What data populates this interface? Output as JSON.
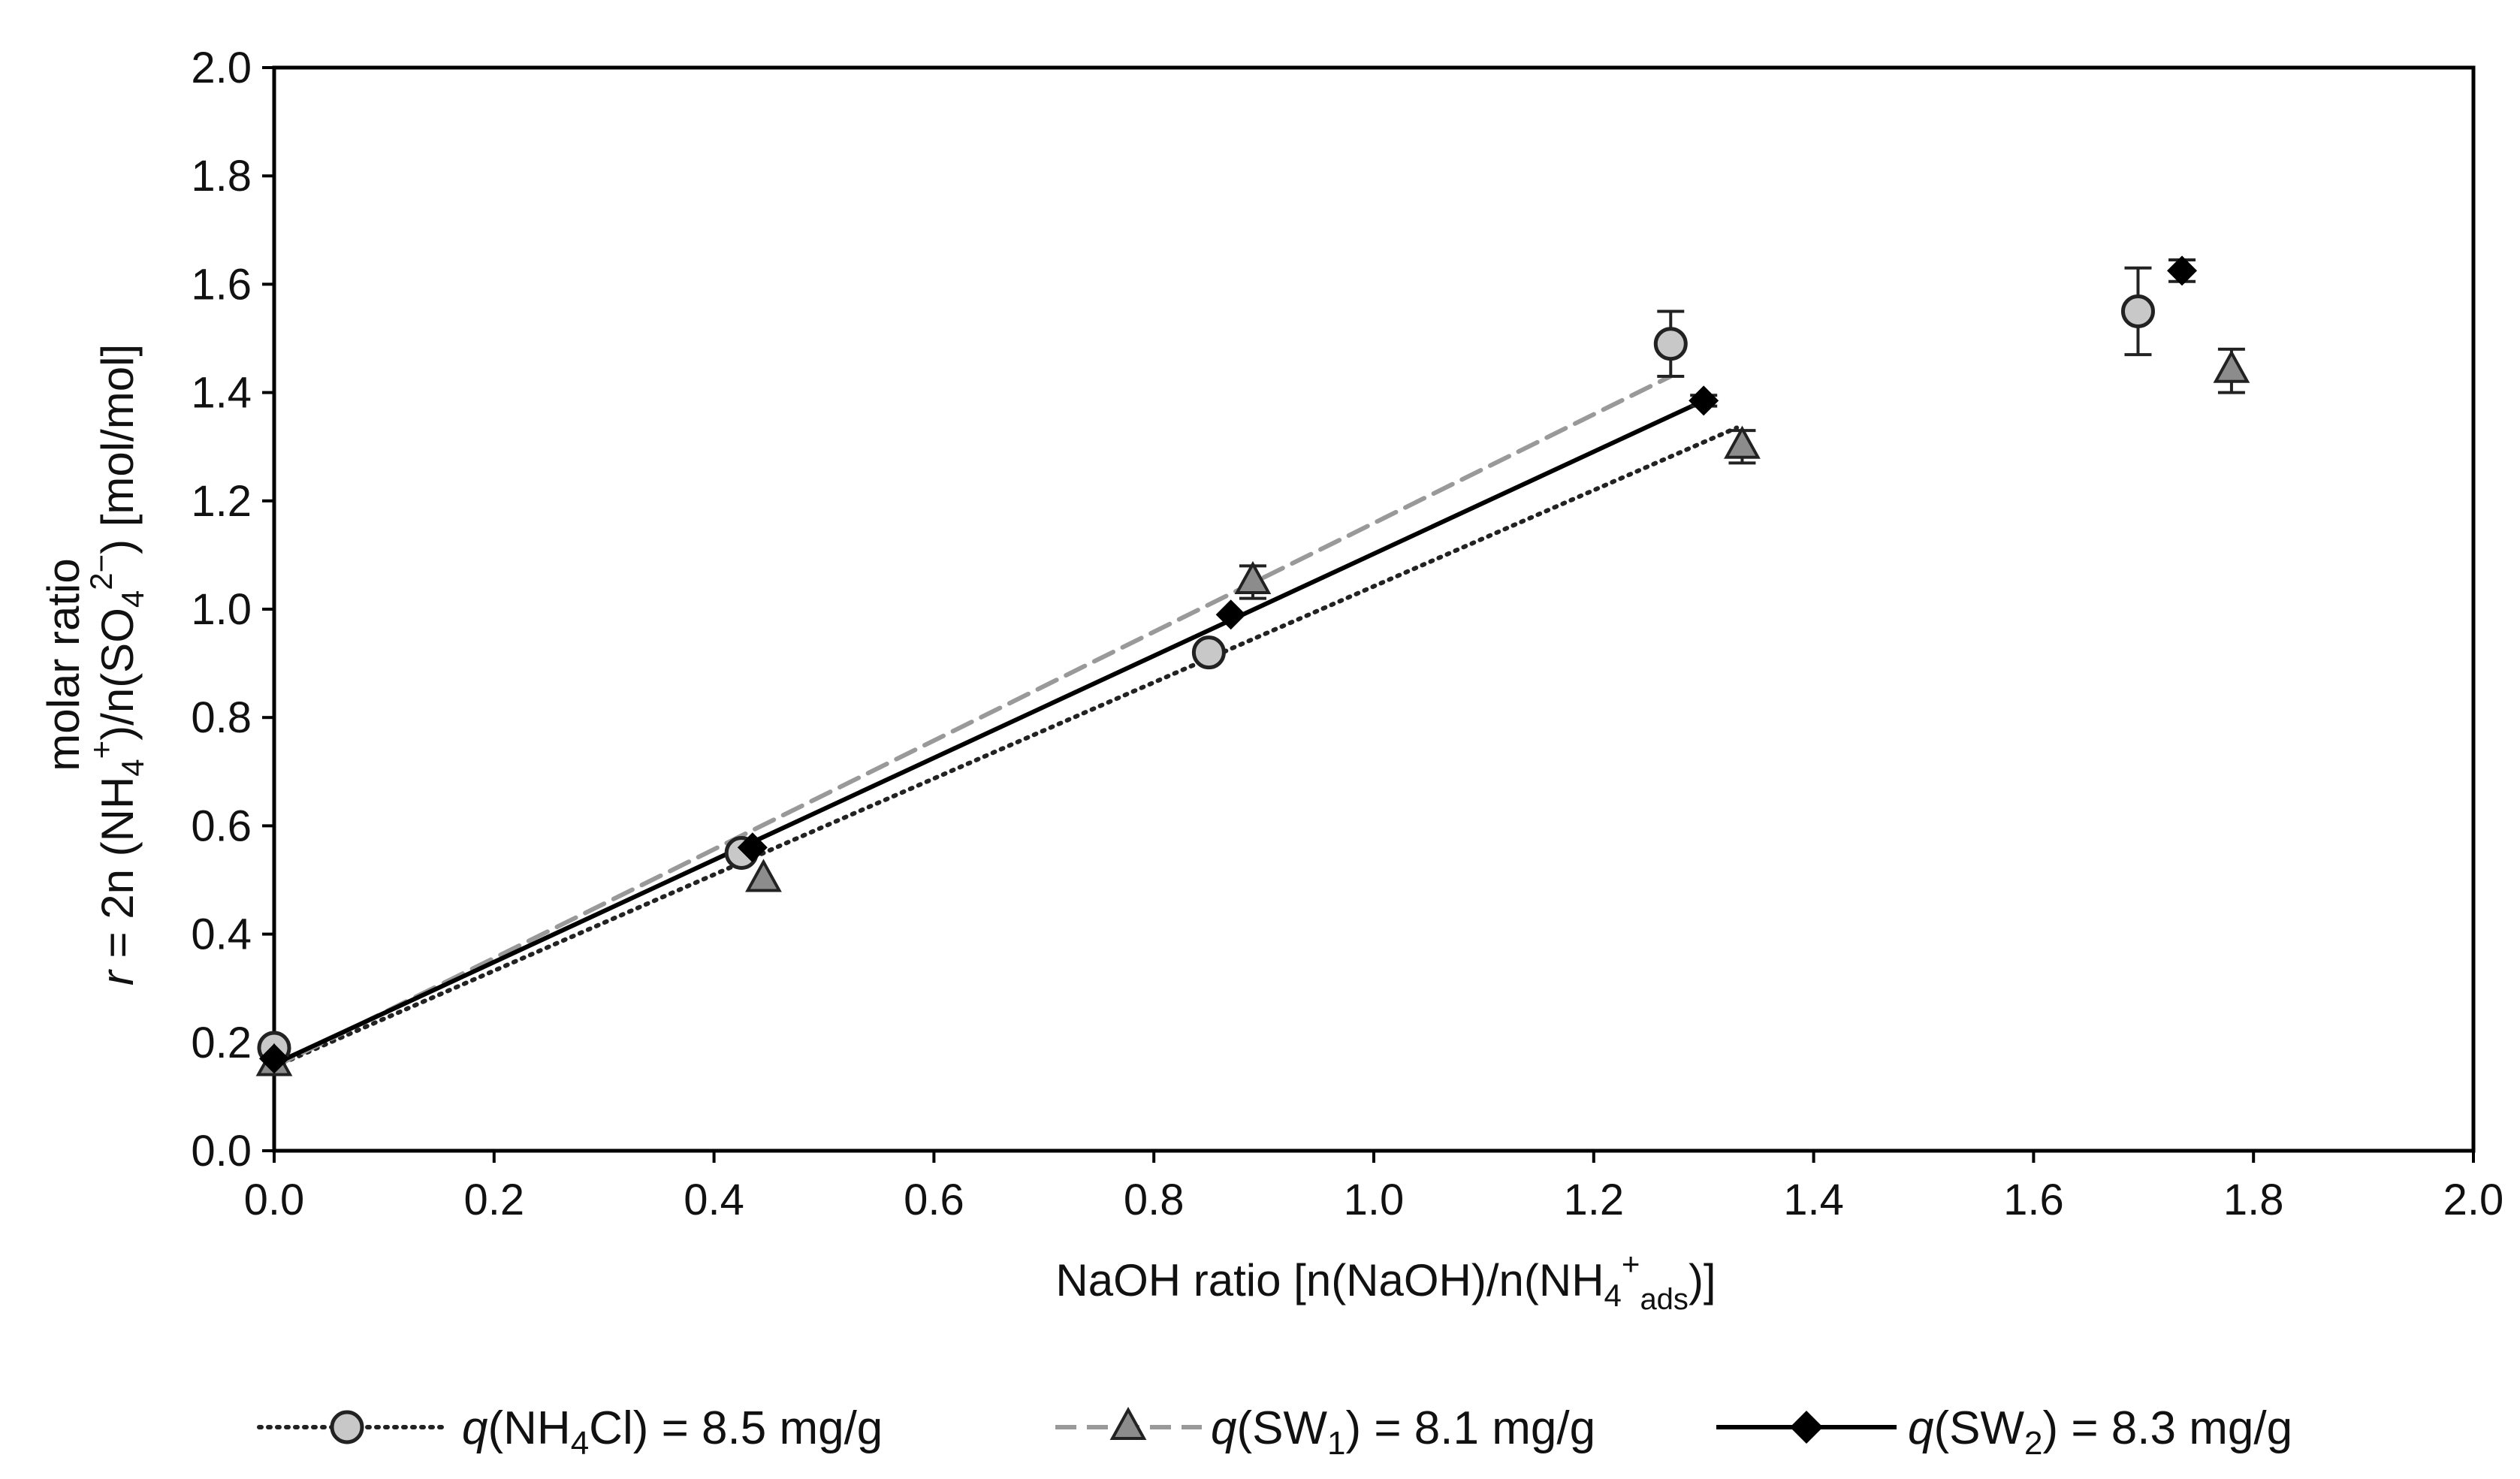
{
  "chart_data": {
    "type": "scatter",
    "xlabel": {
      "prefix": "NaOH ratio [n(NaOH)/n(NH",
      "sub": "4",
      "sup": "+",
      "sub2": "ads",
      "suffix": ")]"
    },
    "ylabel": {
      "line1": "molar ratio",
      "line2": {
        "italic": "r",
        "text_a": " = 2n (NH",
        "sub_a": "4",
        "sup_a": "+",
        "text_b": ")/n(SO",
        "sub_b": "4",
        "sup_b": "2−",
        "text_c": ") [mol/mol]"
      }
    },
    "xlim": [
      0.0,
      2.0
    ],
    "ylim": [
      0.0,
      2.0
    ],
    "xticks": [
      "0.0",
      "0.2",
      "0.4",
      "0.6",
      "0.8",
      "1.0",
      "1.2",
      "1.4",
      "1.6",
      "1.8",
      "2.0"
    ],
    "yticks": [
      "0.0",
      "0.2",
      "0.4",
      "0.6",
      "0.8",
      "1.0",
      "1.2",
      "1.4",
      "1.6",
      "1.8",
      "2.0"
    ],
    "legend_position": "bottom",
    "series": [
      {
        "name": "q(NH4Cl) = 8.5 mg/g",
        "legend": {
          "italic": "q",
          "text_a": "(NH",
          "sub": "4",
          "text_b": "Cl) = 8.5 mg/g"
        },
        "marker": "circle",
        "fill": "#c8c8c8",
        "line_style": "dotted",
        "line_color": "#222222",
        "points": [
          {
            "x": 0.0,
            "y": 0.19,
            "err": 0.0
          },
          {
            "x": 0.425,
            "y": 0.55,
            "err": 0.0
          },
          {
            "x": 0.85,
            "y": 0.92,
            "err": 0.0
          },
          {
            "x": 1.27,
            "y": 1.49,
            "err": 0.06
          },
          {
            "x": 1.695,
            "y": 1.55,
            "err": 0.08
          }
        ],
        "fit": {
          "x": [
            0.0,
            1.33
          ],
          "y": [
            0.155,
            1.335
          ]
        }
      },
      {
        "name": "q(SW1) = 8.1 mg/g",
        "legend": {
          "italic": "q",
          "text_a": "(SW",
          "sub": "1",
          "text_b": ") = 8.1 mg/g"
        },
        "marker": "triangle",
        "fill": "#8c8c8c",
        "line_style": "dashed",
        "line_color": "#999999",
        "points": [
          {
            "x": 0.0,
            "y": 0.16,
            "err": 0.0
          },
          {
            "x": 0.445,
            "y": 0.5,
            "err": 0.0
          },
          {
            "x": 0.89,
            "y": 1.05,
            "err": 0.03
          },
          {
            "x": 1.335,
            "y": 1.3,
            "err": 0.03
          },
          {
            "x": 1.78,
            "y": 1.44,
            "err": 0.04
          }
        ],
        "fit": {
          "x": [
            0.0,
            1.27
          ],
          "y": [
            0.155,
            1.43
          ]
        }
      },
      {
        "name": "q(SW2) = 8.3 mg/g",
        "legend": {
          "italic": "q",
          "text_a": "(SW",
          "sub": "2",
          "text_b": ") = 8.3 mg/g"
        },
        "marker": "diamond",
        "fill": "#000000",
        "line_style": "solid",
        "line_color": "#000000",
        "points": [
          {
            "x": 0.0,
            "y": 0.17,
            "err": 0.0
          },
          {
            "x": 0.435,
            "y": 0.56,
            "err": 0.0
          },
          {
            "x": 0.87,
            "y": 0.99,
            "err": 0.0
          },
          {
            "x": 1.3,
            "y": 1.385,
            "err": 0.01
          },
          {
            "x": 1.735,
            "y": 1.625,
            "err": 0.02
          }
        ],
        "fit": {
          "x": [
            0.0,
            1.3
          ],
          "y": [
            0.16,
            1.385
          ]
        }
      }
    ]
  }
}
